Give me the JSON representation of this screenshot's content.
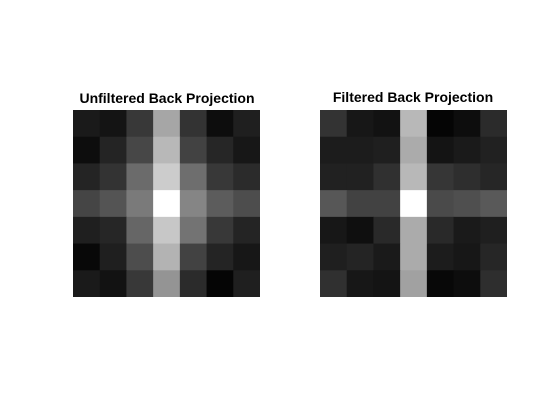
{
  "chart_data": [
    {
      "type": "heatmap",
      "title": "Unfiltered Back Projection",
      "colormap": "gray",
      "rows": 7,
      "cols": 7,
      "values": [
        [
          0.1,
          0.08,
          0.22,
          0.65,
          0.2,
          0.05,
          0.12
        ],
        [
          0.05,
          0.14,
          0.28,
          0.72,
          0.26,
          0.15,
          0.09
        ],
        [
          0.14,
          0.2,
          0.42,
          0.8,
          0.43,
          0.22,
          0.17
        ],
        [
          0.27,
          0.33,
          0.48,
          1.0,
          0.52,
          0.36,
          0.3
        ],
        [
          0.12,
          0.15,
          0.4,
          0.78,
          0.45,
          0.22,
          0.14
        ],
        [
          0.03,
          0.12,
          0.3,
          0.7,
          0.26,
          0.14,
          0.09
        ],
        [
          0.1,
          0.07,
          0.22,
          0.58,
          0.17,
          0.02,
          0.12
        ]
      ]
    },
    {
      "type": "heatmap",
      "title": "Filtered Back Projection",
      "colormap": "gray",
      "rows": 7,
      "cols": 7,
      "values": [
        [
          0.2,
          0.09,
          0.07,
          0.72,
          0.02,
          0.05,
          0.17
        ],
        [
          0.11,
          0.11,
          0.12,
          0.67,
          0.08,
          0.1,
          0.13
        ],
        [
          0.13,
          0.13,
          0.19,
          0.72,
          0.21,
          0.18,
          0.15
        ],
        [
          0.34,
          0.26,
          0.26,
          1.0,
          0.29,
          0.31,
          0.35
        ],
        [
          0.09,
          0.06,
          0.16,
          0.67,
          0.16,
          0.1,
          0.12
        ],
        [
          0.12,
          0.14,
          0.1,
          0.67,
          0.11,
          0.09,
          0.15
        ],
        [
          0.19,
          0.09,
          0.08,
          0.63,
          0.03,
          0.05,
          0.18
        ]
      ]
    }
  ]
}
